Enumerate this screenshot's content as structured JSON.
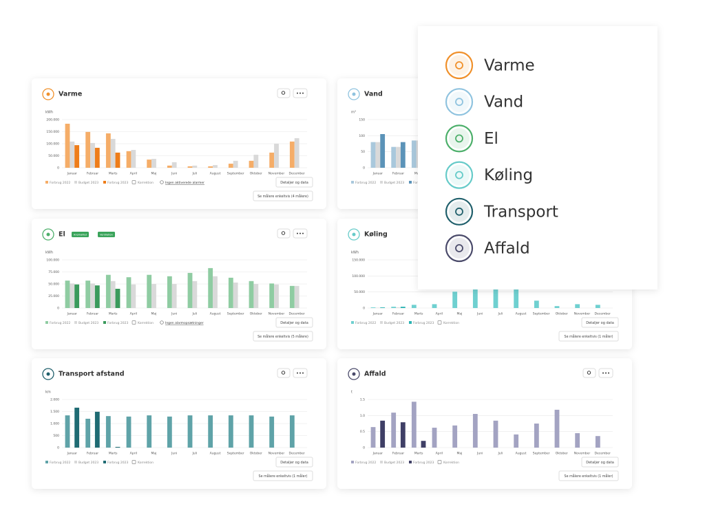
{
  "cards": [
    {
      "title": "Varme",
      "color": "#f0902a",
      "chart": {
        "type": "bar",
        "unit": "kWh",
        "categories": [
          "Januar",
          "Februar",
          "Marts",
          "April",
          "Maj",
          "Juni",
          "Juli",
          "August",
          "September",
          "Oktober",
          "November",
          "December"
        ],
        "series": [
          {
            "name": "Forbrug 2022",
            "color": "#f5ad68",
            "values": [
              183000,
              149000,
              143000,
              69000,
              34000,
              9000,
              6000,
              6000,
              17000,
              29000,
              63000,
              109000
            ]
          },
          {
            "name": "Budget 2023",
            "color": "#d9d9d9",
            "values": [
              109000,
              103000,
              120000,
              74000,
              37000,
              23000,
              9000,
              11000,
              29000,
              54000,
              100000,
              123000
            ]
          },
          {
            "name": "Forbrug 2023",
            "color": "#ee7d1a",
            "values": [
              94000,
              83000,
              63000,
              null,
              null,
              null,
              null,
              null,
              null,
              null,
              null,
              null
            ]
          }
        ],
        "ylim": [
          0,
          200000
        ],
        "yticks": [
          0,
          {
            "value": 50000,
            "label": "50.000"
          },
          {
            "value": 100000,
            "label": "100.000"
          },
          {
            "value": 150000,
            "label": "150.000"
          },
          {
            "value": 200000,
            "label": "200.000"
          }
        ],
        "grid": true
      },
      "correction_label": "Korrektion",
      "alarm_link": "Ingen aktiverede alarmer",
      "buttons": {
        "details": "Detaljer og data",
        "meters": "Se målere enkeltvis (4 målere)"
      }
    },
    {
      "title": "Vand",
      "color": "#8fc3df",
      "chart": {
        "type": "bar",
        "unit": "m³",
        "categories": [
          "Januar",
          "Februar",
          "Marts",
          "April",
          "Maj",
          "Juni",
          "Juli",
          "August",
          "September",
          "Oktober",
          "November",
          "December"
        ],
        "series": [
          {
            "name": "Forbrug 2022",
            "color": "#a9c8dc",
            "values": [
              80,
              65,
              85,
              null,
              null,
              null,
              null,
              null,
              null,
              null,
              null,
              null
            ]
          },
          {
            "name": "Budget 2023",
            "color": "#d9d9d9",
            "values": [
              80,
              65,
              85,
              null,
              null,
              null,
              null,
              null,
              null,
              null,
              null,
              null
            ]
          },
          {
            "name": "Forbrug 2023",
            "color": "#5b93b8",
            "values": [
              105,
              80,
              55,
              null,
              null,
              null,
              null,
              null,
              null,
              null,
              null,
              null
            ]
          }
        ],
        "ylim": [
          0,
          150
        ],
        "yticks": [
          0,
          50,
          100,
          150
        ],
        "grid": true
      }
    },
    {
      "title": "El",
      "color": "#4caf6a",
      "tags": [
        "Anomalitet",
        "Ventilation"
      ],
      "chart": {
        "type": "bar",
        "unit": "kWh",
        "categories": [
          "Januar",
          "Februar",
          "Marts",
          "April",
          "Maj",
          "Juni",
          "Juli",
          "August",
          "September",
          "Oktober",
          "November",
          "December"
        ],
        "series": [
          {
            "name": "Forbrug 2022",
            "color": "#8fcca2",
            "values": [
              57000,
              57000,
              69000,
              64000,
              69000,
              66000,
              73000,
              83000,
              63000,
              56000,
              51000,
              46000
            ]
          },
          {
            "name": "Budget 2023",
            "color": "#d9d9d9",
            "values": [
              51000,
              51000,
              56000,
              49000,
              50000,
              50000,
              56000,
              66000,
              53000,
              50000,
              49000,
              46000
            ]
          },
          {
            "name": "Forbrug 2023",
            "color": "#3a9a5c",
            "values": [
              49000,
              47000,
              40000,
              null,
              null,
              null,
              null,
              null,
              null,
              null,
              null,
              null
            ]
          }
        ],
        "ylim": [
          0,
          100000
        ],
        "yticks": [
          0,
          {
            "value": 25000,
            "label": "25.000"
          },
          {
            "value": 50000,
            "label": "50.000"
          },
          {
            "value": 75000,
            "label": "75.000"
          },
          {
            "value": 100000,
            "label": "100.000"
          }
        ],
        "grid": true
      },
      "correction_label": "Korrektion",
      "alarm_link": "Ingen alarmopsætninger",
      "buttons": {
        "details": "Detaljer og data",
        "meters": "Se målere enkeltvis (5 målere)"
      }
    },
    {
      "title": "Køling",
      "color": "#66cbc9",
      "chart": {
        "type": "bar",
        "unit": "kWh",
        "categories": [
          "Januar",
          "Februar",
          "Marts",
          "April",
          "Maj",
          "Juni",
          "Juli",
          "August",
          "September",
          "Oktober",
          "November",
          "December"
        ],
        "series": [
          {
            "name": "Forbrug 2022",
            "color": "#6fd0d0",
            "values": [
              2000,
              4000,
              10000,
              12000,
              51000,
              64000,
              64000,
              64000,
              23000,
              6000,
              12000,
              10000
            ]
          },
          {
            "name": "Budget 2023",
            "color": "#d9d9d9",
            "values": [
              1000,
              2000,
              null,
              null,
              null,
              null,
              null,
              null,
              null,
              null,
              null,
              null
            ]
          },
          {
            "name": "Forbrug 2023",
            "color": "#2bb3b3",
            "values": [
              2000,
              4000,
              null,
              null,
              null,
              null,
              null,
              null,
              null,
              null,
              null,
              null
            ]
          }
        ],
        "ylim": [
          0,
          150000
        ],
        "yticks": [
          0,
          {
            "value": 50000,
            "label": "50.000"
          },
          {
            "value": 100000,
            "label": "100.000"
          },
          {
            "value": 150000,
            "label": "150.000"
          }
        ],
        "grid": true
      },
      "correction_label": "Korrektion",
      "buttons": {
        "details": "Detaljer og data",
        "meters": "Se målere enkeltvis (1 måler)"
      }
    },
    {
      "title": "Transport afstand",
      "color": "#1f5f6b",
      "chart": {
        "type": "bar",
        "unit": "km",
        "categories": [
          "Januar",
          "Februar",
          "Marts",
          "April",
          "Maj",
          "Juni",
          "Juli",
          "August",
          "September",
          "Oktober",
          "November",
          "December"
        ],
        "series": [
          {
            "name": "Forbrug 2022",
            "color": "#5fa3a8",
            "values": [
              1340,
              1200,
              1310,
              1290,
              1340,
              1290,
              1340,
              1340,
              1340,
              1340,
              1290,
              1340
            ]
          },
          {
            "name": "Budget 2023",
            "color": "#d9d9d9",
            "values": [
              null,
              null,
              null,
              null,
              null,
              null,
              null,
              null,
              null,
              null,
              null,
              null
            ]
          },
          {
            "name": "Forbrug 2023",
            "color": "#1f6b73",
            "values": [
              1660,
              1490,
              30,
              null,
              null,
              null,
              null,
              null,
              null,
              null,
              null,
              null
            ]
          }
        ],
        "ylim": [
          0,
          2000
        ],
        "yticks": [
          0,
          500,
          {
            "value": 1000,
            "label": "1.000"
          },
          {
            "value": 1500,
            "label": "1.500"
          },
          {
            "value": 2000,
            "label": "2.000"
          }
        ],
        "grid": true
      },
      "correction_label": "Korrektion",
      "buttons": {
        "details": "Detaljer og data",
        "meters": "Se målere enkeltvis (1 måler)"
      }
    },
    {
      "title": "Affald",
      "color": "#4a4a6a",
      "chart": {
        "type": "bar",
        "unit": "t",
        "categories": [
          "Januar",
          "Februar",
          "Marts",
          "April",
          "Maj",
          "Juni",
          "Juli",
          "August",
          "September",
          "Oktober",
          "November",
          "December"
        ],
        "series": [
          {
            "name": "Forbrug 2022",
            "color": "#a3a3c2",
            "values": [
              0.64,
              1.09,
              1.43,
              0.62,
              0.69,
              1.05,
              0.84,
              0.41,
              0.75,
              1.18,
              0.45,
              0.36
            ]
          },
          {
            "name": "Budget 2023",
            "color": "#d9d9d9",
            "values": [
              null,
              null,
              null,
              null,
              null,
              null,
              null,
              null,
              null,
              null,
              null,
              null
            ]
          },
          {
            "name": "Forbrug 2023",
            "color": "#3f3f66",
            "values": [
              0.84,
              0.79,
              0.21,
              null,
              null,
              null,
              null,
              null,
              null,
              null,
              null,
              null
            ]
          }
        ],
        "ylim": [
          0,
          1.5
        ],
        "yticks": [
          0,
          0.5,
          {
            "value": 1,
            "label": "1.0"
          },
          1.5
        ],
        "grid": true
      },
      "correction_label": "Korrektion",
      "buttons": {
        "details": "Detaljer og data",
        "meters": "Se målere enkeltvis (1 måler)"
      }
    }
  ],
  "overlay": {
    "items": [
      {
        "label": "Varme",
        "color": "#f0902a"
      },
      {
        "label": "Vand",
        "color": "#8fc3df"
      },
      {
        "label": "El",
        "color": "#4caf6a"
      },
      {
        "label": "Køling",
        "color": "#66cbc9"
      },
      {
        "label": "Transport",
        "color": "#1f5f6b"
      },
      {
        "label": "Affald",
        "color": "#4a4a6a"
      }
    ]
  }
}
